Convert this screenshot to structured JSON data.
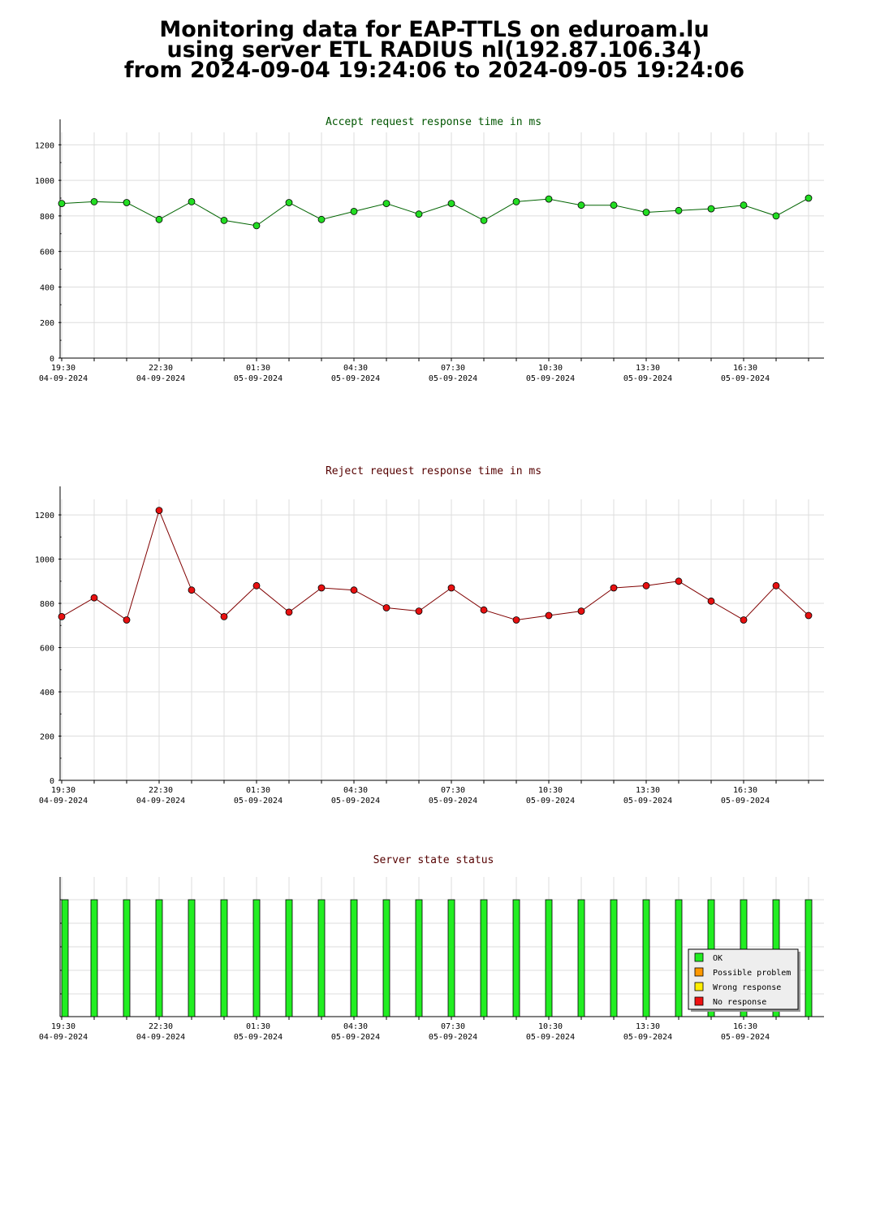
{
  "title": {
    "line1": "Monitoring data for EAP-TTLS on eduroam.lu",
    "line2": "using server ETL RADIUS nl(192.87.106.34)",
    "line3": "from 2024-09-04 19:24:06 to 2024-09-05 19:24:06"
  },
  "colors": {
    "accept_line": "#006400",
    "accept_marker": "#22dd22",
    "reject_line": "#800000",
    "reject_marker": "#e81010",
    "status_ok": "#22ee22",
    "status_possible": "#ff9900",
    "status_wrong": "#ffee00",
    "status_none": "#ee1111",
    "grid": "#dddddd",
    "accept_title": "#005500",
    "reject_title": "#550000",
    "status_title": "#550000"
  },
  "x_ticks": [
    {
      "time": "19:30",
      "date": "04-09-2024"
    },
    {
      "time": "22:30",
      "date": "04-09-2024"
    },
    {
      "time": "01:30",
      "date": "05-09-2024"
    },
    {
      "time": "04:30",
      "date": "05-09-2024"
    },
    {
      "time": "07:30",
      "date": "05-09-2024"
    },
    {
      "time": "10:30",
      "date": "05-09-2024"
    },
    {
      "time": "13:30",
      "date": "05-09-2024"
    },
    {
      "time": "16:30",
      "date": "05-09-2024"
    }
  ],
  "chart_data": [
    {
      "type": "line",
      "title": "Accept request response time in ms",
      "x": [
        "19:30",
        "20:30",
        "21:30",
        "22:30",
        "23:30",
        "00:30",
        "01:30",
        "02:30",
        "03:30",
        "04:30",
        "05:30",
        "06:30",
        "07:30",
        "08:30",
        "09:30",
        "10:30",
        "11:30",
        "12:30",
        "13:30",
        "14:30",
        "15:30",
        "16:30",
        "17:30",
        "18:30"
      ],
      "values": [
        870,
        880,
        875,
        780,
        880,
        775,
        745,
        875,
        780,
        825,
        870,
        810,
        870,
        775,
        880,
        895,
        860,
        860,
        820,
        830,
        840,
        860,
        800,
        900
      ],
      "ylim": [
        0,
        1270
      ],
      "yticks": [
        0,
        200,
        400,
        600,
        800,
        1000,
        1200
      ],
      "grid": true
    },
    {
      "type": "line",
      "title": "Reject request response time in ms",
      "x": [
        "19:30",
        "20:30",
        "21:30",
        "22:30",
        "23:30",
        "00:30",
        "01:30",
        "02:30",
        "03:30",
        "04:30",
        "05:30",
        "06:30",
        "07:30",
        "08:30",
        "09:30",
        "10:30",
        "11:30",
        "12:30",
        "13:30",
        "14:30",
        "15:30",
        "16:30",
        "17:30",
        "18:30"
      ],
      "values": [
        740,
        825,
        725,
        1220,
        860,
        740,
        880,
        760,
        870,
        860,
        780,
        765,
        870,
        770,
        725,
        745,
        765,
        870,
        880,
        900,
        810,
        725,
        880,
        745
      ],
      "ylim": [
        0,
        1270
      ],
      "yticks": [
        0,
        200,
        400,
        600,
        800,
        1000,
        1200
      ],
      "grid": true
    },
    {
      "type": "bar",
      "title": "Server state status",
      "x": [
        "19:30",
        "20:30",
        "21:30",
        "22:30",
        "23:30",
        "00:30",
        "01:30",
        "02:30",
        "03:30",
        "04:30",
        "05:30",
        "06:30",
        "07:30",
        "08:30",
        "09:30",
        "10:30",
        "11:30",
        "12:30",
        "13:30",
        "14:30",
        "15:30",
        "16:30",
        "17:30",
        "18:30"
      ],
      "status": [
        "OK",
        "OK",
        "OK",
        "OK",
        "OK",
        "OK",
        "OK",
        "OK",
        "OK",
        "OK",
        "OK",
        "OK",
        "OK",
        "OK",
        "OK",
        "OK",
        "OK",
        "OK",
        "OK",
        "OK",
        "OK",
        "OK",
        "OK",
        "OK"
      ],
      "legend": [
        "OK",
        "Possible problem",
        "Wrong response",
        "No response"
      ],
      "legend_position": "bottom-right"
    }
  ]
}
